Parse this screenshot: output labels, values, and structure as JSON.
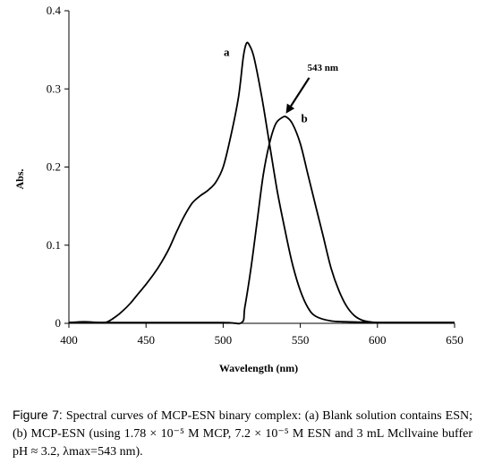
{
  "chart_data": {
    "type": "line",
    "xlabel": "Wavelength  (nm)",
    "ylabel": "Abs.",
    "xlim": [
      400,
      650
    ],
    "ylim": [
      0,
      0.4
    ],
    "x_ticks": [
      "400",
      "450",
      "500",
      "550",
      "600",
      "650"
    ],
    "y_ticks": [
      "0",
      "0.1",
      "0.2",
      "0.3",
      "0.4"
    ],
    "grid": false,
    "series": [
      {
        "name": "a",
        "points": [
          [
            400,
            0.001
          ],
          [
            410,
            0.002
          ],
          [
            420,
            0.001
          ],
          [
            425,
            0.002
          ],
          [
            430,
            0.008
          ],
          [
            435,
            0.016
          ],
          [
            440,
            0.026
          ],
          [
            445,
            0.038
          ],
          [
            450,
            0.05
          ],
          [
            455,
            0.063
          ],
          [
            460,
            0.078
          ],
          [
            465,
            0.096
          ],
          [
            470,
            0.118
          ],
          [
            475,
            0.138
          ],
          [
            480,
            0.154
          ],
          [
            485,
            0.163
          ],
          [
            490,
            0.17
          ],
          [
            495,
            0.18
          ],
          [
            500,
            0.2
          ],
          [
            505,
            0.24
          ],
          [
            510,
            0.29
          ],
          [
            513,
            0.34
          ],
          [
            515,
            0.358
          ],
          [
            517,
            0.356
          ],
          [
            520,
            0.34
          ],
          [
            525,
            0.29
          ],
          [
            530,
            0.23
          ],
          [
            535,
            0.17
          ],
          [
            540,
            0.12
          ],
          [
            545,
            0.075
          ],
          [
            550,
            0.042
          ],
          [
            555,
            0.02
          ],
          [
            560,
            0.009
          ],
          [
            570,
            0.003
          ],
          [
            580,
            0.002
          ],
          [
            600,
            0.001
          ],
          [
            620,
            0.001
          ],
          [
            650,
            0.001
          ]
        ]
      },
      {
        "name": "b",
        "points": [
          [
            400,
            0.001
          ],
          [
            450,
            0.001
          ],
          [
            500,
            0.001
          ],
          [
            512,
            0.001
          ],
          [
            514,
            0.02
          ],
          [
            518,
            0.07
          ],
          [
            522,
            0.13
          ],
          [
            526,
            0.19
          ],
          [
            530,
            0.23
          ],
          [
            534,
            0.255
          ],
          [
            538,
            0.263
          ],
          [
            541,
            0.264
          ],
          [
            545,
            0.255
          ],
          [
            550,
            0.23
          ],
          [
            555,
            0.19
          ],
          [
            560,
            0.15
          ],
          [
            565,
            0.11
          ],
          [
            570,
            0.07
          ],
          [
            575,
            0.042
          ],
          [
            580,
            0.022
          ],
          [
            585,
            0.01
          ],
          [
            590,
            0.004
          ],
          [
            595,
            0.002
          ],
          [
            600,
            0.001
          ],
          [
            620,
            0.001
          ],
          [
            650,
            0.001
          ]
        ]
      }
    ],
    "annotations": [
      {
        "label": "543 nm",
        "arrow_to": [
          543,
          0.265
        ]
      }
    ]
  },
  "caption": {
    "prefix": "Figure 7:",
    "body": " Spectral curves of MCP-ESN binary complex: (a) Blank solution contains ESN; (b) MCP-ESN (using 1.78 × 10⁻⁵ M MCP, 7.2 × 10⁻⁵ M ESN and 3 mL Mcllvaine buffer pH ≈ 3.2, λmax=543 nm)."
  }
}
